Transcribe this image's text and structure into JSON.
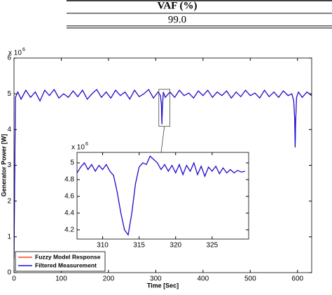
{
  "table": {
    "header": "VAF (%)",
    "rows": [
      [
        "99.0"
      ]
    ]
  },
  "chart_data": [
    {
      "type": "line",
      "x_label": "Time [Sec]",
      "y_label": "Generator Power [W]",
      "y_multiplier": {
        "base": "x 10",
        "exponent": "6"
      },
      "x": [
        0,
        3,
        8,
        15,
        25,
        35,
        45,
        55,
        65,
        75,
        85,
        95,
        105,
        115,
        125,
        135,
        145,
        155,
        165,
        175,
        185,
        195,
        205,
        215,
        225,
        235,
        245,
        255,
        265,
        275,
        285,
        295,
        305,
        310,
        312,
        313,
        314,
        316,
        320,
        330,
        340,
        350,
        360,
        370,
        380,
        390,
        400,
        410,
        420,
        430,
        440,
        450,
        460,
        470,
        480,
        490,
        500,
        510,
        520,
        530,
        540,
        550,
        560,
        570,
        580,
        588,
        592,
        594,
        595,
        596,
        598,
        602,
        610,
        620,
        630
      ],
      "series": [
        {
          "name": "Fuzzy Model Response",
          "color": "#ff3b1f",
          "values": [
            0.4,
            4.9,
            5.05,
            4.85,
            5.1,
            4.9,
            5.05,
            4.8,
            5.1,
            4.95,
            5.12,
            4.88,
            5.0,
            4.9,
            5.08,
            4.92,
            5.1,
            4.85,
            5.0,
            5.12,
            4.9,
            5.05,
            4.88,
            5.1,
            4.95,
            5.05,
            4.85,
            5.1,
            4.92,
            5.0,
            5.12,
            4.88,
            5.05,
            4.95,
            4.7,
            4.15,
            4.6,
            5.05,
            4.9,
            5.05,
            4.9,
            5.1,
            4.95,
            5.02,
            4.88,
            5.08,
            4.95,
            5.1,
            4.9,
            5.05,
            4.95,
            5.08,
            4.88,
            5.05,
            4.92,
            5.1,
            4.95,
            5.02,
            4.88,
            5.1,
            4.92,
            5.05,
            4.9,
            5.08,
            4.95,
            5.0,
            4.8,
            4.3,
            3.5,
            4.2,
            4.9,
            5.05,
            4.9,
            5.05,
            4.95
          ]
        },
        {
          "name": "Filtered Measurement",
          "color": "#1010e0",
          "values": [
            0.4,
            4.9,
            5.05,
            4.85,
            5.1,
            4.9,
            5.05,
            4.8,
            5.1,
            4.95,
            5.12,
            4.88,
            5.0,
            4.9,
            5.08,
            4.92,
            5.1,
            4.85,
            5.0,
            5.12,
            4.9,
            5.05,
            4.88,
            5.1,
            4.95,
            5.05,
            4.85,
            5.1,
            4.92,
            5.0,
            5.12,
            4.88,
            5.05,
            4.95,
            4.7,
            4.15,
            4.6,
            5.05,
            4.9,
            5.05,
            4.9,
            5.1,
            4.95,
            5.02,
            4.88,
            5.08,
            4.95,
            5.1,
            4.9,
            5.05,
            4.95,
            5.08,
            4.88,
            5.05,
            4.92,
            5.1,
            4.95,
            5.02,
            4.88,
            5.1,
            4.92,
            5.05,
            4.9,
            5.08,
            4.95,
            5.0,
            4.8,
            4.3,
            3.5,
            4.2,
            4.9,
            5.05,
            4.9,
            5.05,
            4.95
          ]
        }
      ],
      "xlim": [
        0,
        630
      ],
      "ylim": [
        0,
        6
      ],
      "xticks": [
        0,
        100,
        200,
        300,
        400,
        500,
        600
      ],
      "yticks": [
        0,
        1,
        2,
        3,
        4,
        5,
        6
      ],
      "legend": "lower left"
    },
    {
      "type": "line",
      "y_multiplier": {
        "base": "x 10",
        "exponent": "6"
      },
      "x": [
        306.5,
        307,
        307.5,
        308,
        308.5,
        309,
        309.5,
        310,
        310.5,
        311,
        311.5,
        312,
        312.5,
        313,
        313.5,
        314,
        314.5,
        315,
        315.5,
        316,
        316.5,
        317,
        317.5,
        318,
        318.5,
        319,
        319.5,
        320,
        320.5,
        321,
        321.5,
        322,
        322.5,
        323,
        323.5,
        324,
        324.5,
        325,
        325.5,
        326,
        326.5,
        327,
        327.5,
        328,
        328.5,
        329,
        329.5
      ],
      "series": [
        {
          "color": "#ff3b1f",
          "values": [
            4.88,
            4.95,
            5.0,
            4.92,
            4.98,
            4.9,
            4.97,
            4.92,
            4.98,
            4.9,
            4.85,
            4.65,
            4.4,
            4.2,
            4.14,
            4.4,
            4.75,
            4.95,
            5.0,
            4.98,
            5.08,
            5.04,
            5.0,
            4.92,
            4.98,
            4.9,
            4.97,
            4.88,
            4.98,
            4.86,
            4.97,
            4.9,
            5.0,
            4.86,
            4.96,
            4.84,
            4.95,
            4.9,
            4.96,
            4.87,
            4.94,
            4.88,
            4.92,
            4.88,
            4.91,
            4.89,
            4.9
          ]
        },
        {
          "color": "#1010e0",
          "values": [
            4.88,
            4.95,
            5.0,
            4.92,
            4.98,
            4.9,
            4.97,
            4.92,
            4.98,
            4.9,
            4.85,
            4.65,
            4.4,
            4.2,
            4.14,
            4.4,
            4.75,
            4.95,
            5.0,
            4.98,
            5.08,
            5.04,
            5.0,
            4.92,
            4.98,
            4.9,
            4.97,
            4.88,
            4.98,
            4.86,
            4.97,
            4.9,
            5.0,
            4.86,
            4.96,
            4.84,
            4.95,
            4.9,
            4.96,
            4.87,
            4.94,
            4.88,
            4.92,
            4.88,
            4.91,
            4.89,
            4.9
          ]
        }
      ],
      "xlim": [
        306.5,
        330
      ],
      "ylim": [
        4.09,
        5.125
      ],
      "xticks": [
        310,
        315,
        320,
        325
      ],
      "yticks": [
        4.2,
        4.4,
        4.6,
        4.8,
        5
      ]
    }
  ]
}
